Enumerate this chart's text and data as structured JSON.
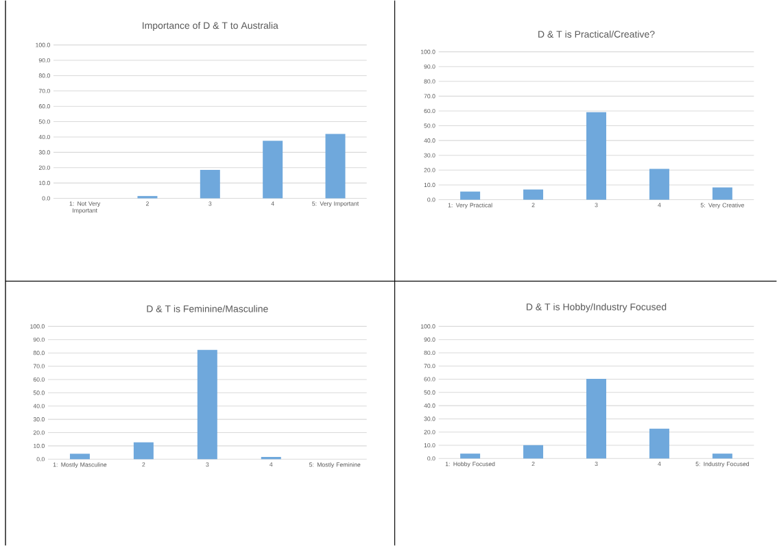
{
  "chart_data": [
    {
      "type": "bar",
      "title": "Importance of D & T to Australia",
      "categories": [
        "1: Not Very Important",
        "2",
        "3",
        "4",
        "5: Very Important"
      ],
      "values": [
        0,
        1.5,
        18.5,
        37.5,
        42
      ],
      "color": "#6fa8dc",
      "ylim": [
        0,
        100
      ],
      "yticks": [
        {
          "value": 0,
          "label": "0.0"
        },
        {
          "value": 10,
          "label": "10.0"
        },
        {
          "value": 20,
          "label": "20.0"
        },
        {
          "value": 30,
          "label": "30.0"
        },
        {
          "value": 40,
          "label": "40.0"
        },
        {
          "value": 50,
          "label": "50.0"
        },
        {
          "value": 60,
          "label": "60.0"
        },
        {
          "value": 70,
          "label": "70.0"
        },
        {
          "value": 80,
          "label": "80.0"
        },
        {
          "value": 90,
          "label": "90.0"
        },
        {
          "value": 100,
          "label": "100.0"
        }
      ],
      "grid": "y"
    },
    {
      "type": "bar",
      "title": "D & T is Practical/Creative?",
      "categories": [
        "1: Very Practical",
        "2",
        "3",
        "4",
        "5: Very Creative"
      ],
      "values": [
        5.5,
        6.9,
        59.2,
        20.8,
        8.3
      ],
      "color": "#6fa8dc",
      "ylim": [
        0,
        100
      ],
      "yticks": [
        {
          "value": 0,
          "label": "0.0"
        },
        {
          "value": 10,
          "label": "10.0"
        },
        {
          "value": 20,
          "label": "20.0"
        },
        {
          "value": 30,
          "label": "30.0"
        },
        {
          "value": 40,
          "label": "40.0"
        },
        {
          "value": 50,
          "label": "50.0"
        },
        {
          "value": 60,
          "label": "60.0"
        },
        {
          "value": 70,
          "label": "70.0"
        },
        {
          "value": 80,
          "label": "80.0"
        },
        {
          "value": 90,
          "label": "90.0"
        },
        {
          "value": 100,
          "label": "100.0"
        }
      ],
      "grid": "y"
    },
    {
      "type": "bar",
      "title": "D & T is Feminine/Masculine",
      "categories": [
        "1: Mostly Masculine",
        "2",
        "3",
        "4",
        "5: Mostly Feminine"
      ],
      "values": [
        4.1,
        12.7,
        82.3,
        1.7,
        0
      ],
      "color": "#6fa8dc",
      "ylim": [
        0,
        100
      ],
      "yticks": [
        {
          "value": 0,
          "label": "0.0"
        },
        {
          "value": 10,
          "label": "10.0"
        },
        {
          "value": 20,
          "label": "20.0"
        },
        {
          "value": 30,
          "label": "30.0"
        },
        {
          "value": 40,
          "label": "40.0"
        },
        {
          "value": 50,
          "label": "50.0"
        },
        {
          "value": 60,
          "label": "60.0"
        },
        {
          "value": 70,
          "label": "70.0"
        },
        {
          "value": 80,
          "label": "80.0"
        },
        {
          "value": 90,
          "label": "90.0"
        },
        {
          "value": 100,
          "label": "100.0"
        }
      ],
      "grid": "y"
    },
    {
      "type": "bar",
      "title": "D & T is Hobby/Industry Focused",
      "categories": [
        "1: Hobby Focused",
        "2",
        "3",
        "4",
        "5: Industry Focused"
      ],
      "values": [
        3.7,
        10.1,
        60.3,
        22.6,
        3.7
      ],
      "color": "#6fa8dc",
      "ylim": [
        0,
        100
      ],
      "yticks": [
        {
          "value": 0,
          "label": "0.0"
        },
        {
          "value": 10,
          "label": "10.0"
        },
        {
          "value": 20,
          "label": "20.0"
        },
        {
          "value": 30,
          "label": "30.0"
        },
        {
          "value": 40,
          "label": "40.0"
        },
        {
          "value": 50,
          "label": "50.0"
        },
        {
          "value": 60,
          "label": "60.0"
        },
        {
          "value": 70,
          "label": "70.0"
        },
        {
          "value": 80,
          "label": "80.0"
        },
        {
          "value": 90,
          "label": "90.0"
        },
        {
          "value": 100,
          "label": "100.0"
        }
      ],
      "grid": "y"
    }
  ]
}
